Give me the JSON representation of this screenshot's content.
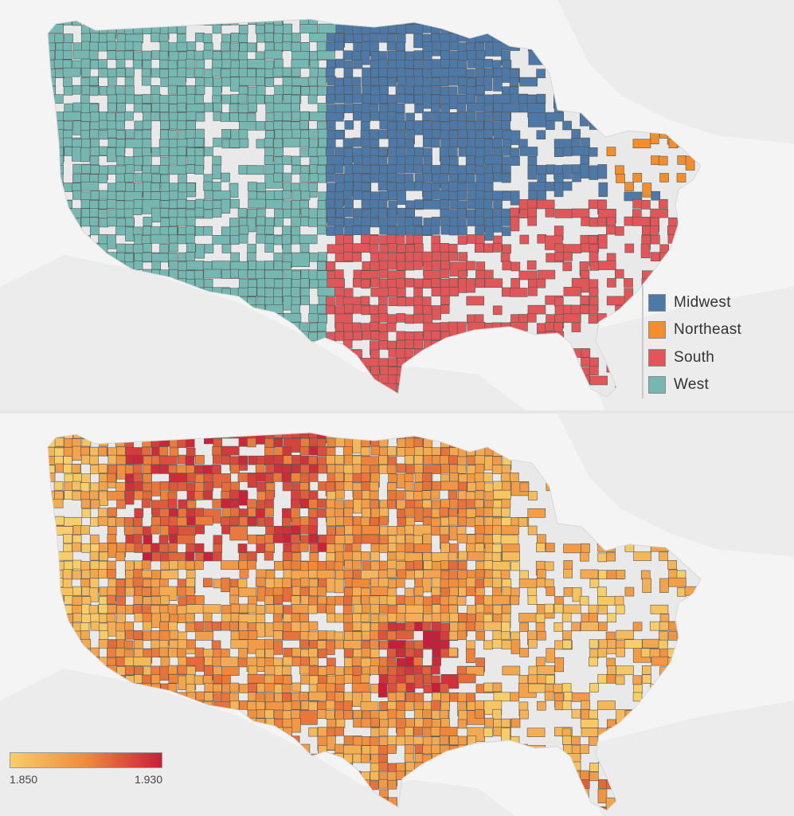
{
  "region_map": {
    "legend": {
      "items": [
        {
          "label": "Midwest",
          "color": "#4e79a7"
        },
        {
          "label": "Northeast",
          "color": "#f28e2b"
        },
        {
          "label": "South",
          "color": "#e15759"
        },
        {
          "label": "West",
          "color": "#76b7b2"
        }
      ]
    },
    "basemap_color": "#ebebeb",
    "border_color": "#555555"
  },
  "value_map": {
    "legend": {
      "min_label": "1.850",
      "max_label": "1.930",
      "color_low": "#f7ce6a",
      "color_mid": "#ef8a3c",
      "color_high": "#c81e3a"
    },
    "basemap_color": "#ebebeb",
    "border_color": "#555555"
  }
}
